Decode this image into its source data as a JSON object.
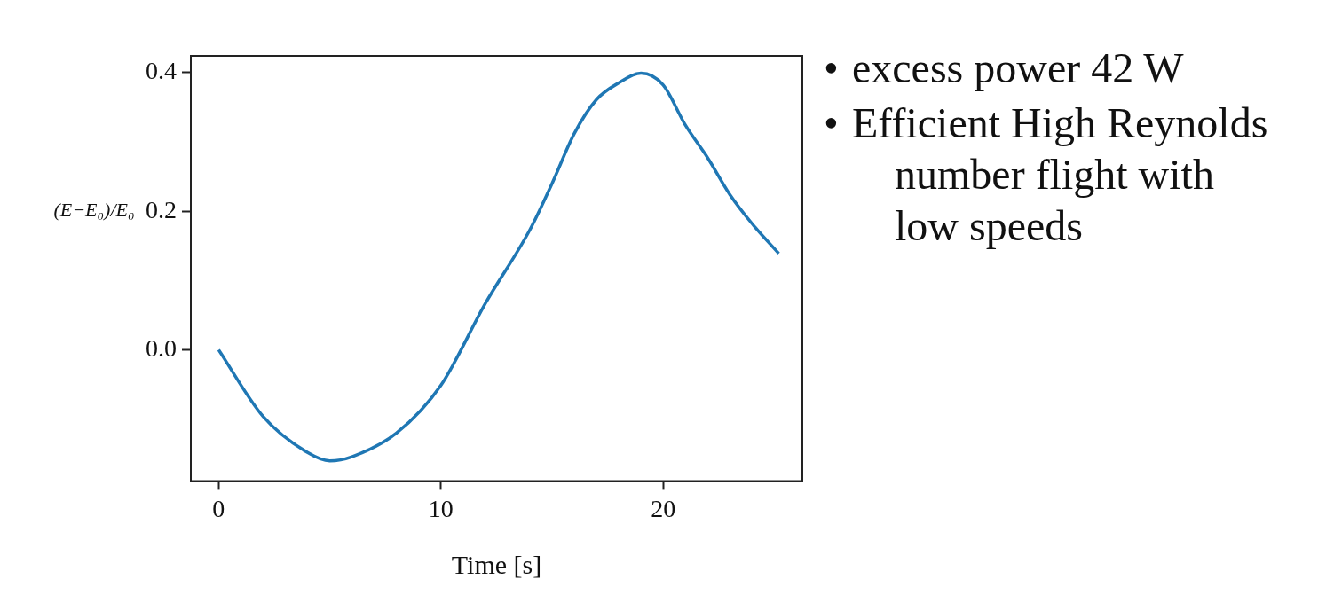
{
  "chart_data": {
    "type": "line",
    "xlabel": "Time [s]",
    "ylabel": "(E−E₀)/E₀",
    "x": [
      0,
      2,
      4,
      5,
      6,
      8,
      10,
      12,
      14,
      15,
      16,
      17,
      18,
      19,
      20,
      21,
      22,
      23,
      24,
      25.2
    ],
    "series": [
      {
        "color": "#1f77b4",
        "values": [
          0,
          -0.096,
          -0.148,
          -0.16,
          -0.154,
          -0.12,
          -0.051,
          0.067,
          0.173,
          0.24,
          0.312,
          0.361,
          0.385,
          0.399,
          0.382,
          0.324,
          0.277,
          0.224,
          0.182,
          0.139
        ]
      }
    ],
    "xlim": [
      -1.25,
      26.26
    ],
    "ylim": [
      -0.189,
      0.424
    ],
    "xticks": [
      0,
      10,
      20
    ],
    "yticks": [
      {
        "value": 0,
        "label": "0.0"
      },
      0.2,
      0.4
    ],
    "grid": false,
    "legend": false,
    "marker": "none",
    "line_style": "solid",
    "annotations": [
      "•\texcess power 42 W",
      "•\tEfficient High Reynolds number flight with low speeds"
    ]
  }
}
